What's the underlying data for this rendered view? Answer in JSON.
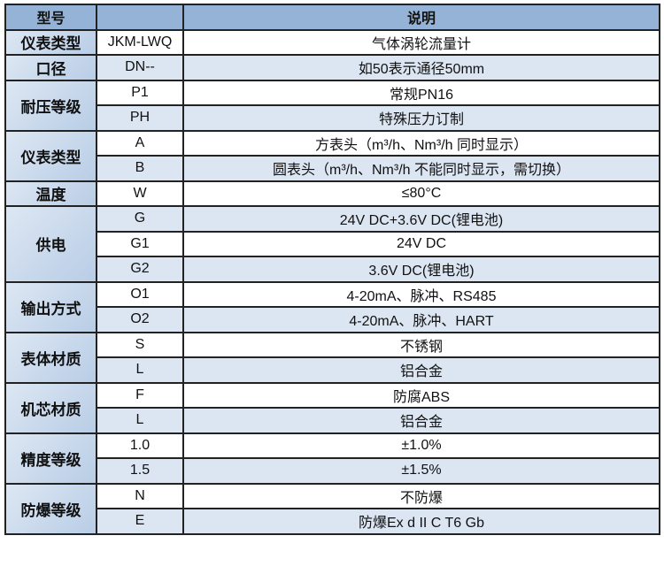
{
  "header": {
    "col1": "型号",
    "col2": "",
    "col3": "说明"
  },
  "groups": [
    {
      "category": "仪表类型",
      "rows": [
        {
          "code": "JKM-LWQ",
          "desc": "气体涡轮流量计"
        }
      ]
    },
    {
      "category": "口径",
      "rows": [
        {
          "code": "DN--",
          "desc": "如50表示通径50mm"
        }
      ]
    },
    {
      "category": "耐压等级",
      "rows": [
        {
          "code": "P1",
          "desc": "常规PN16"
        },
        {
          "code": "PH",
          "desc": "特殊压力订制"
        }
      ]
    },
    {
      "category": "仪表类型",
      "rows": [
        {
          "code": "A",
          "desc": "方表头（m³/h、Nm³/h 同时显示）"
        },
        {
          "code": "B",
          "desc": "圆表头（m³/h、Nm³/h 不能同时显示，需切换）"
        }
      ]
    },
    {
      "category": "温度",
      "rows": [
        {
          "code": "W",
          "desc": "≤80°C"
        }
      ]
    },
    {
      "category": "供电",
      "rows": [
        {
          "code": "G",
          "desc": "24V DC+3.6V DC(锂电池)"
        },
        {
          "code": "G1",
          "desc": "24V DC"
        },
        {
          "code": "G2",
          "desc": "3.6V DC(锂电池)"
        }
      ]
    },
    {
      "category": "输出方式",
      "rows": [
        {
          "code": "O1",
          "desc": "4-20mA、脉冲、RS485"
        },
        {
          "code": "O2",
          "desc": "4-20mA、脉冲、HART"
        }
      ]
    },
    {
      "category": "表体材质",
      "rows": [
        {
          "code": "S",
          "desc": "不锈钢"
        },
        {
          "code": "L",
          "desc": "铝合金"
        }
      ]
    },
    {
      "category": "机芯材质",
      "rows": [
        {
          "code": "F",
          "desc": "防腐ABS"
        },
        {
          "code": "L",
          "desc": "铝合金"
        }
      ]
    },
    {
      "category": "精度等级",
      "rows": [
        {
          "code": "1.0",
          "desc": "±1.0%"
        },
        {
          "code": "1.5",
          "desc": "±1.5%"
        }
      ]
    },
    {
      "category": "防爆等级",
      "rows": [
        {
          "code": "N",
          "desc": "不防爆"
        },
        {
          "code": "E",
          "desc": "防爆Ex d II C T6 Gb"
        }
      ]
    }
  ],
  "colors": {
    "header_bg": "#95b3d7",
    "category_bg": "#b8cde6",
    "alt_row_bg": "#dce6f2",
    "border": "#222222"
  }
}
